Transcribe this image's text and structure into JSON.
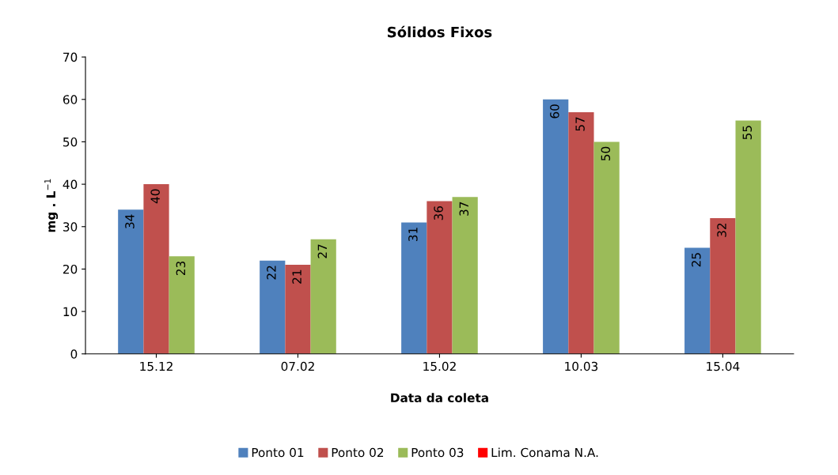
{
  "chart_data": {
    "type": "bar",
    "title": "Sólidos Fixos",
    "xlabel": "Data da coleta",
    "ylabel": "mg . L$^{−1}$",
    "categories": [
      "15.12",
      "07.02",
      "15.02",
      "10.03",
      "15.04"
    ],
    "series": [
      {
        "name": "Ponto 01",
        "color": "#4f81bd",
        "values": [
          34,
          22,
          31,
          60,
          25
        ]
      },
      {
        "name": "Ponto 02",
        "color": "#c0504d",
        "values": [
          40,
          21,
          36,
          57,
          32
        ]
      },
      {
        "name": "Ponto 03",
        "color": "#9bbb59",
        "values": [
          23,
          27,
          37,
          50,
          55
        ]
      },
      {
        "name": "Lim. Conama N.A.",
        "color": "#ff0000",
        "values": [
          null,
          null,
          null,
          null,
          null
        ]
      }
    ],
    "ylim": [
      0,
      70
    ],
    "yticks": [
      0,
      10,
      20,
      30,
      40,
      50,
      60,
      70
    ],
    "data_labels": true,
    "legend": "bottom",
    "grid": false
  }
}
